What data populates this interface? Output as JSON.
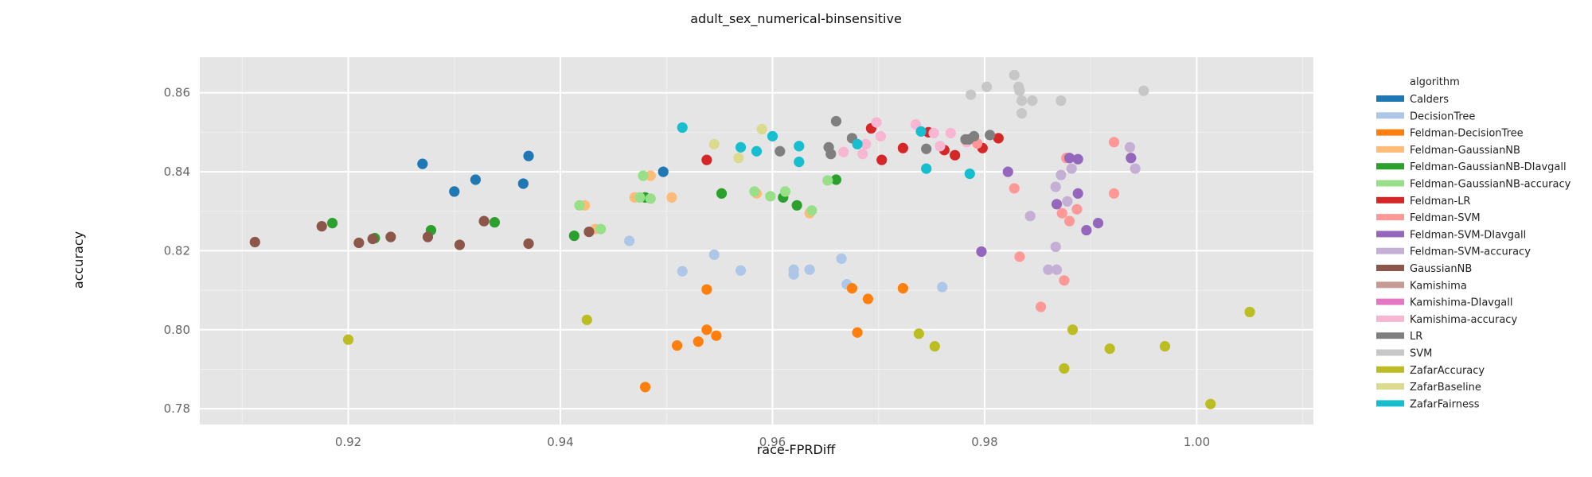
{
  "chart_data": {
    "type": "scatter",
    "title": "adult_sex_numerical-binsensitive",
    "xlabel": "race-FPRDiff",
    "ylabel": "accuracy",
    "xlim": [
      0.906,
      1.011
    ],
    "ylim": [
      0.776,
      0.869
    ],
    "x_ticks": [
      0.92,
      0.94,
      0.96,
      0.98,
      1.0
    ],
    "x_tick_labels": [
      "0.92",
      "0.94",
      "0.96",
      "0.98",
      "1.00"
    ],
    "y_ticks": [
      0.78,
      0.8,
      0.82,
      0.84,
      0.86
    ],
    "y_tick_labels": [
      "0.78",
      "0.80",
      "0.82",
      "0.84",
      "0.86"
    ],
    "grid": true,
    "legend_title": "algorithm",
    "legend_position": "right",
    "series": [
      {
        "name": "Calders",
        "color": "#1f77b4",
        "points": [
          [
            0.927,
            0.842
          ],
          [
            0.93,
            0.835
          ],
          [
            0.932,
            0.838
          ],
          [
            0.9365,
            0.837
          ],
          [
            0.937,
            0.844
          ],
          [
            0.9497,
            0.84
          ]
        ]
      },
      {
        "name": "DecisionTree",
        "color": "#aec7e8",
        "points": [
          [
            0.9465,
            0.8225
          ],
          [
            0.9515,
            0.8148
          ],
          [
            0.9545,
            0.819
          ],
          [
            0.957,
            0.815
          ],
          [
            0.962,
            0.8152
          ],
          [
            0.962,
            0.814
          ],
          [
            0.9635,
            0.8152
          ],
          [
            0.9665,
            0.818
          ],
          [
            0.967,
            0.8115
          ],
          [
            0.976,
            0.8108
          ]
        ]
      },
      {
        "name": "Feldman-DecisionTree",
        "color": "#ff7f0e",
        "points": [
          [
            0.948,
            0.7855
          ],
          [
            0.951,
            0.796
          ],
          [
            0.953,
            0.797
          ],
          [
            0.9538,
            0.8
          ],
          [
            0.9538,
            0.8102
          ],
          [
            0.9547,
            0.7985
          ],
          [
            0.9675,
            0.8105
          ],
          [
            0.968,
            0.7993
          ],
          [
            0.969,
            0.8078
          ],
          [
            0.9723,
            0.8105
          ]
        ]
      },
      {
        "name": "Feldman-GaussianNB",
        "color": "#ffbb78",
        "points": [
          [
            0.9423,
            0.8315
          ],
          [
            0.9433,
            0.8255
          ],
          [
            0.947,
            0.8335
          ],
          [
            0.9485,
            0.839
          ],
          [
            0.9505,
            0.8335
          ],
          [
            0.9585,
            0.8345
          ],
          [
            0.9635,
            0.8295
          ]
        ]
      },
      {
        "name": "Feldman-GaussianNB-DIavgall",
        "color": "#2ca02c",
        "points": [
          [
            0.9185,
            0.827
          ],
          [
            0.9225,
            0.8232
          ],
          [
            0.9278,
            0.8252
          ],
          [
            0.9338,
            0.8272
          ],
          [
            0.9413,
            0.8238
          ],
          [
            0.948,
            0.8335
          ],
          [
            0.9552,
            0.8345
          ],
          [
            0.961,
            0.8335
          ],
          [
            0.9623,
            0.8315
          ],
          [
            0.966,
            0.838
          ]
        ]
      },
      {
        "name": "Feldman-GaussianNB-accuracy",
        "color": "#98df8a",
        "points": [
          [
            0.9418,
            0.8315
          ],
          [
            0.9438,
            0.8255
          ],
          [
            0.9475,
            0.8335
          ],
          [
            0.9478,
            0.839
          ],
          [
            0.9485,
            0.8332
          ],
          [
            0.9583,
            0.835
          ],
          [
            0.9598,
            0.8338
          ],
          [
            0.9612,
            0.835
          ],
          [
            0.9637,
            0.8302
          ],
          [
            0.9652,
            0.8378
          ]
        ]
      },
      {
        "name": "Feldman-LR",
        "color": "#d62728",
        "points": [
          [
            0.9538,
            0.843
          ],
          [
            0.9693,
            0.851
          ],
          [
            0.9703,
            0.843
          ],
          [
            0.9723,
            0.846
          ],
          [
            0.9747,
            0.85
          ],
          [
            0.9762,
            0.8455
          ],
          [
            0.9772,
            0.8442
          ],
          [
            0.9798,
            0.846
          ],
          [
            0.9813,
            0.8485
          ]
        ]
      },
      {
        "name": "Feldman-SVM",
        "color": "#ff9896",
        "points": [
          [
            0.9793,
            0.8472
          ],
          [
            0.9828,
            0.8358
          ],
          [
            0.9833,
            0.8185
          ],
          [
            0.9853,
            0.8058
          ],
          [
            0.9873,
            0.8295
          ],
          [
            0.9875,
            0.8125
          ],
          [
            0.9877,
            0.8435
          ],
          [
            0.988,
            0.8275
          ],
          [
            0.9887,
            0.8305
          ],
          [
            0.9922,
            0.8475
          ],
          [
            0.9922,
            0.8345
          ]
        ]
      },
      {
        "name": "Feldman-SVM-DIavgall",
        "color": "#9467bd",
        "points": [
          [
            0.9797,
            0.8198
          ],
          [
            0.9822,
            0.84
          ],
          [
            0.9868,
            0.8318
          ],
          [
            0.988,
            0.8435
          ],
          [
            0.9888,
            0.8345
          ],
          [
            0.9888,
            0.8432
          ],
          [
            0.9896,
            0.8252
          ],
          [
            0.9907,
            0.827
          ],
          [
            0.9938,
            0.8435
          ]
        ]
      },
      {
        "name": "Feldman-SVM-accuracy",
        "color": "#c5b0d5",
        "points": [
          [
            0.9843,
            0.8288
          ],
          [
            0.986,
            0.8152
          ],
          [
            0.9867,
            0.8362
          ],
          [
            0.9867,
            0.821
          ],
          [
            0.9868,
            0.8152
          ],
          [
            0.9872,
            0.8392
          ],
          [
            0.9878,
            0.8325
          ],
          [
            0.9882,
            0.8408
          ],
          [
            0.9937,
            0.8462
          ],
          [
            0.9942,
            0.8408
          ]
        ]
      },
      {
        "name": "GaussianNB",
        "color": "#8c564b",
        "points": [
          [
            0.9112,
            0.8222
          ],
          [
            0.9175,
            0.8262
          ],
          [
            0.921,
            0.822
          ],
          [
            0.9223,
            0.823
          ],
          [
            0.924,
            0.8235
          ],
          [
            0.9275,
            0.8235
          ],
          [
            0.9305,
            0.8215
          ],
          [
            0.9328,
            0.8275
          ],
          [
            0.937,
            0.8218
          ],
          [
            0.9427,
            0.8248
          ]
        ]
      },
      {
        "name": "Kamishima",
        "color": "#c49c94",
        "points": []
      },
      {
        "name": "Kamishima-DIavgall",
        "color": "#e377c2",
        "points": []
      },
      {
        "name": "Kamishima-accuracy",
        "color": "#f7b6d2",
        "points": [
          [
            0.9667,
            0.845
          ],
          [
            0.9685,
            0.8445
          ],
          [
            0.9688,
            0.847
          ],
          [
            0.9698,
            0.8525
          ],
          [
            0.9702,
            0.849
          ],
          [
            0.9735,
            0.852
          ],
          [
            0.9752,
            0.8498
          ],
          [
            0.9758,
            0.8465
          ],
          [
            0.9768,
            0.8498
          ],
          [
            0.9783,
            0.8475
          ]
        ]
      },
      {
        "name": "LR",
        "color": "#7f7f7f",
        "points": [
          [
            0.9607,
            0.8452
          ],
          [
            0.9653,
            0.8462
          ],
          [
            0.9655,
            0.8445
          ],
          [
            0.966,
            0.8528
          ],
          [
            0.9675,
            0.8485
          ],
          [
            0.9745,
            0.8458
          ],
          [
            0.9782,
            0.8482
          ],
          [
            0.9785,
            0.8482
          ],
          [
            0.979,
            0.849
          ],
          [
            0.9805,
            0.8493
          ]
        ]
      },
      {
        "name": "SVM",
        "color": "#c7c7c7",
        "points": [
          [
            0.9787,
            0.8595
          ],
          [
            0.9802,
            0.8615
          ],
          [
            0.9828,
            0.8645
          ],
          [
            0.9832,
            0.8615
          ],
          [
            0.9833,
            0.8605
          ],
          [
            0.9835,
            0.858
          ],
          [
            0.9835,
            0.8548
          ],
          [
            0.9845,
            0.858
          ],
          [
            0.9872,
            0.858
          ],
          [
            0.995,
            0.8605
          ]
        ]
      },
      {
        "name": "ZafarAccuracy",
        "color": "#bcbd22",
        "points": [
          [
            0.92,
            0.7975
          ],
          [
            0.9425,
            0.8025
          ],
          [
            0.9738,
            0.799
          ],
          [
            0.9753,
            0.7958
          ],
          [
            0.9875,
            0.7902
          ],
          [
            0.9883,
            0.8
          ],
          [
            0.9918,
            0.7952
          ],
          [
            0.997,
            0.7958
          ],
          [
            1.0013,
            0.7812
          ],
          [
            1.005,
            0.8045
          ]
        ]
      },
      {
        "name": "ZafarBaseline",
        "color": "#dbdb8d",
        "points": [
          [
            0.9545,
            0.847
          ],
          [
            0.9568,
            0.8435
          ],
          [
            0.959,
            0.8508
          ]
        ]
      },
      {
        "name": "ZafarFairness",
        "color": "#17becf",
        "points": [
          [
            0.9515,
            0.8512
          ],
          [
            0.957,
            0.8462
          ],
          [
            0.9585,
            0.8452
          ],
          [
            0.96,
            0.849
          ],
          [
            0.9625,
            0.8465
          ],
          [
            0.9625,
            0.8425
          ],
          [
            0.968,
            0.847
          ],
          [
            0.974,
            0.8502
          ],
          [
            0.9745,
            0.8408
          ],
          [
            0.9786,
            0.8395
          ]
        ]
      }
    ]
  }
}
